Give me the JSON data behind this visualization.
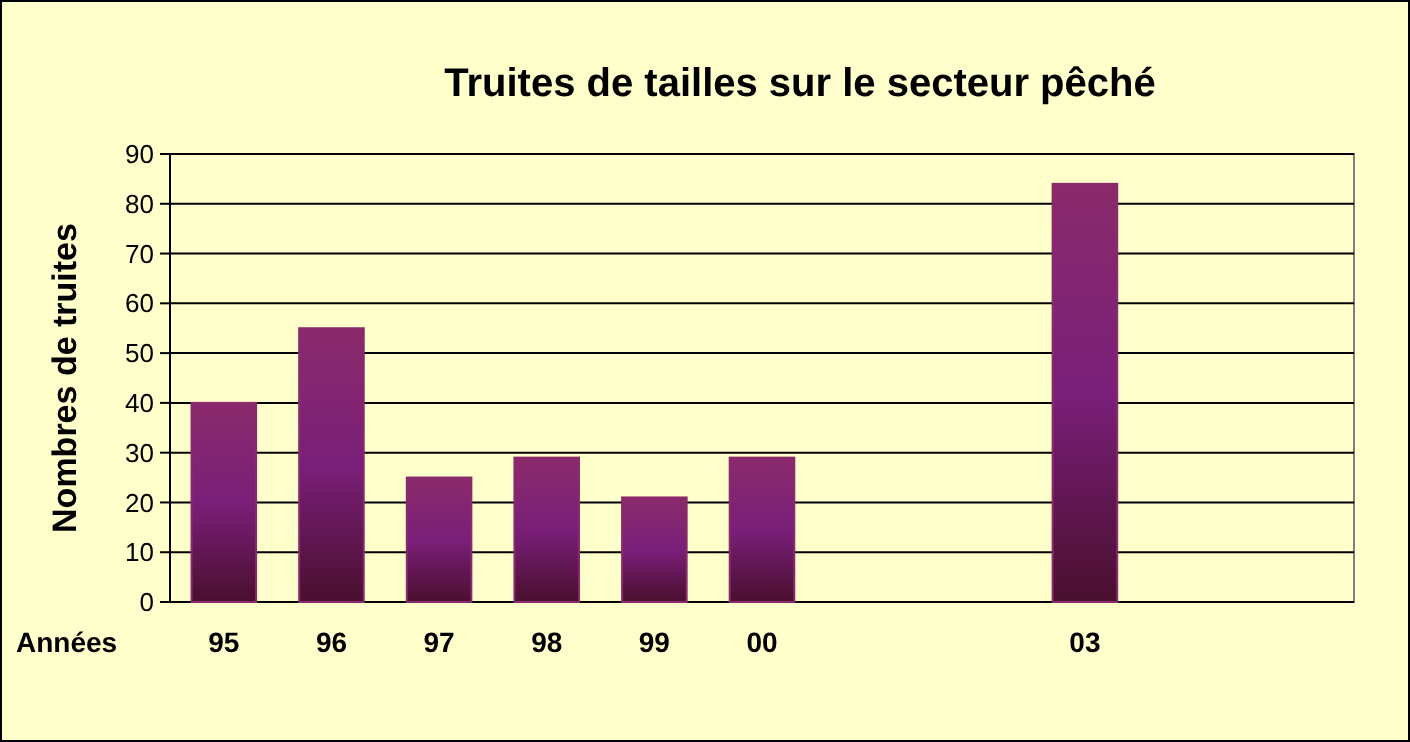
{
  "chart_data": {
    "type": "bar",
    "title": "Truites de tailles sur le secteur pêché",
    "xlabel": "Années",
    "ylabel": "Nombres de truites",
    "categories": [
      "95",
      "96",
      "97",
      "98",
      "99",
      "00",
      null,
      null,
      "03",
      null,
      null
    ],
    "values": [
      40,
      55,
      25,
      29,
      21,
      29,
      null,
      null,
      84,
      null,
      null
    ],
    "color": "#8b2a6b",
    "ylim": [
      0,
      90
    ],
    "yticks": [
      0,
      10,
      20,
      30,
      40,
      50,
      60,
      70,
      80,
      90
    ],
    "grid": "y"
  }
}
